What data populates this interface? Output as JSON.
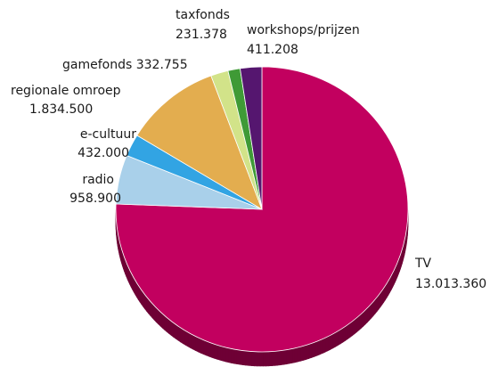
{
  "chart_data": {
    "type": "pie",
    "title": "",
    "style": "3d",
    "slices": [
      {
        "label": "TV",
        "value": 13013360,
        "value_text": "13.013.360",
        "color": "#c2005f",
        "side": "#6e0035"
      },
      {
        "label": "radio",
        "value": 958900,
        "value_text": "958.900",
        "color": "#a9d0ea",
        "side": "#6b93ad"
      },
      {
        "label": "e-cultuur",
        "value": 432000,
        "value_text": "432.000",
        "color": "#32a4e3",
        "side": "#1c6e9c"
      },
      {
        "label": "regionale omroep",
        "value": 1834500,
        "value_text": "1.834.500",
        "color": "#e3ad4f",
        "side": "#9c742d"
      },
      {
        "label": "gamefonds",
        "value": 332755,
        "value_text": "332.755",
        "color": "#d2e389",
        "side": "#93a159"
      },
      {
        "label": "taxfonds",
        "value": 231378,
        "value_text": "231.378",
        "color": "#3f9a36",
        "side": "#25601f"
      },
      {
        "label": "workshops/prijzen",
        "value": 411208,
        "value_text": "411.208",
        "color": "#55166f",
        "side": "#310b42"
      }
    ]
  }
}
